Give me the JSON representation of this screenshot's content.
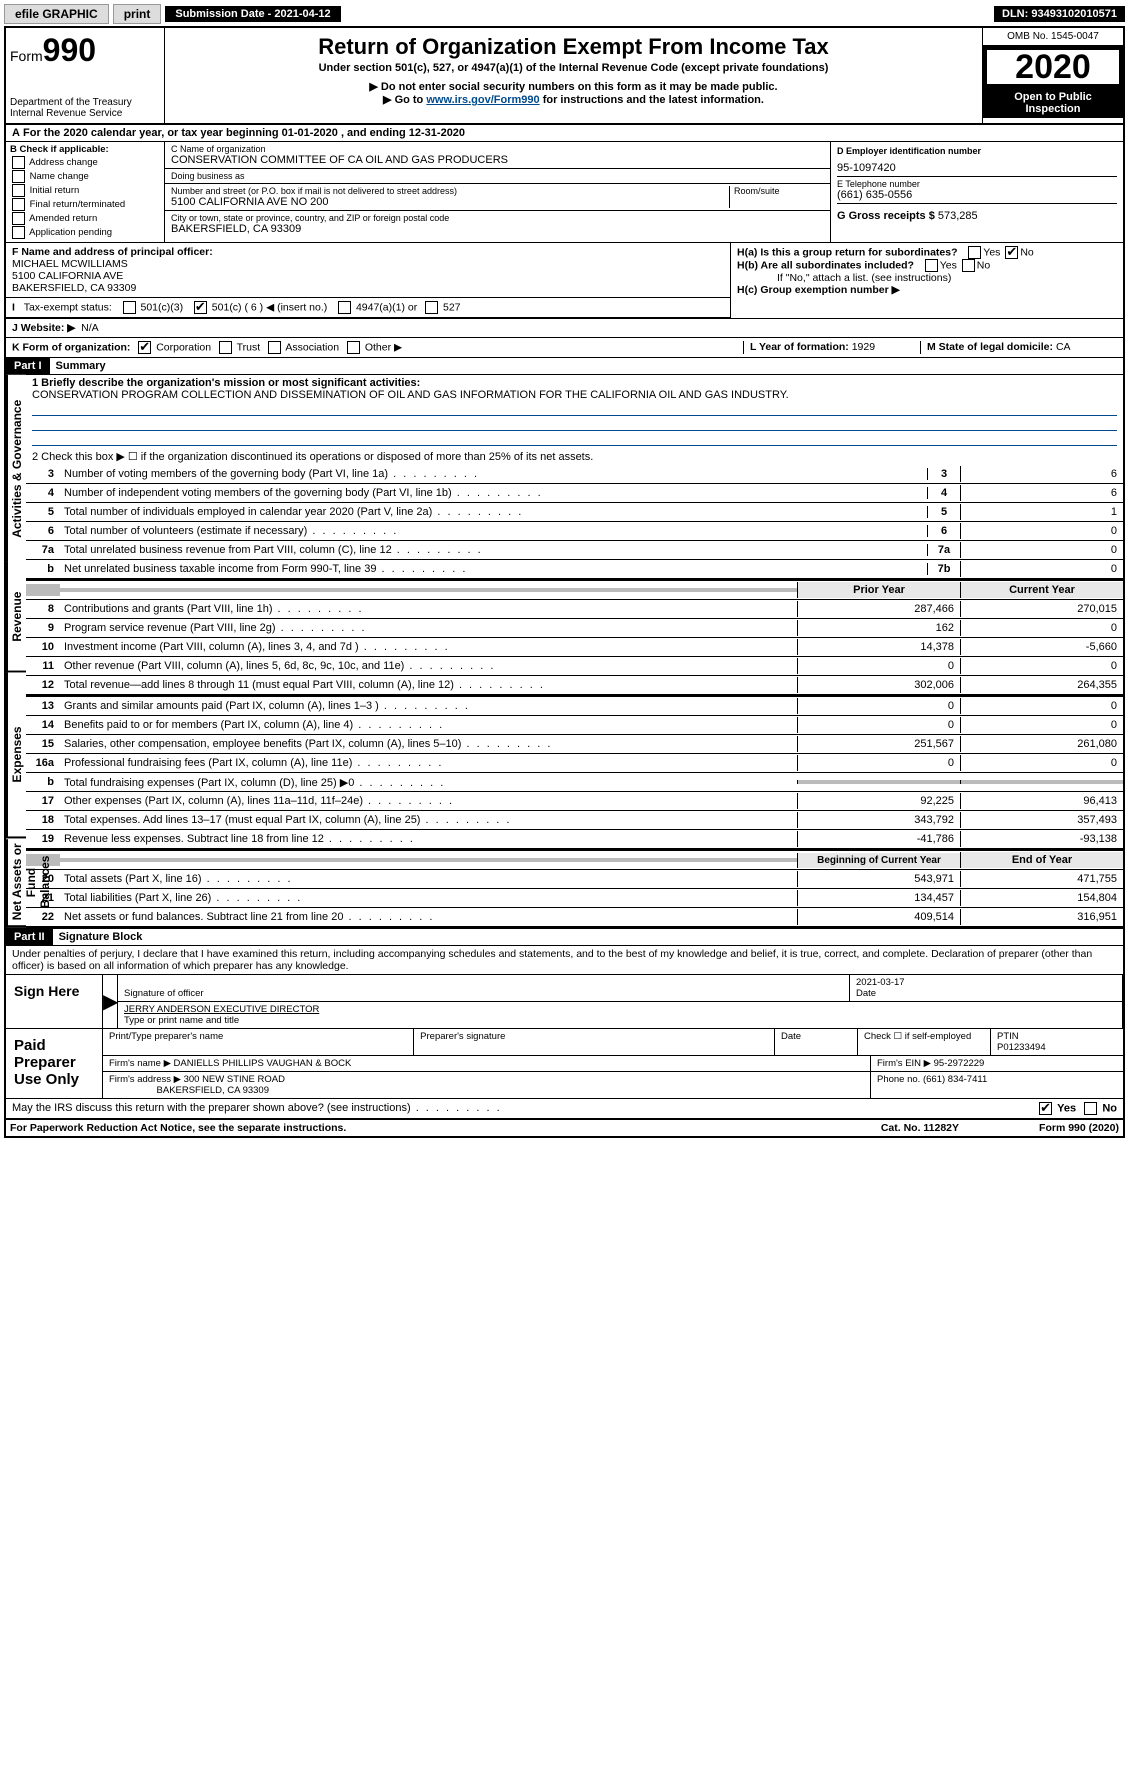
{
  "topbar": {
    "efile": "efile GRAPHIC",
    "print": "print",
    "subdate_label": "Submission Date - 2021-04-12",
    "dln": "DLN: 93493102010571"
  },
  "header": {
    "form_prefix": "Form",
    "form_num": "990",
    "dept": "Department of the Treasury\nInternal Revenue Service",
    "title": "Return of Organization Exempt From Income Tax",
    "subtitle": "Under section 501(c), 527, or 4947(a)(1) of the Internal Revenue Code (except private foundations)",
    "note1": "▶ Do not enter social security numbers on this form as it may be made public.",
    "note2_pre": "▶ Go to ",
    "note2_link": "www.irs.gov/Form990",
    "note2_post": " for instructions and the latest information.",
    "omb": "OMB No. 1545-0047",
    "year": "2020",
    "open": "Open to Public Inspection"
  },
  "periodA": "For the 2020 calendar year, or tax year beginning 01-01-2020     , and ending 12-31-2020",
  "boxB": {
    "label": "B Check if applicable:",
    "opts": [
      "Address change",
      "Name change",
      "Initial return",
      "Final return/terminated",
      "Amended return",
      "Application pending"
    ]
  },
  "boxC": {
    "name_label": "C Name of organization",
    "name": "CONSERVATION COMMITTEE OF CA OIL AND GAS PRODUCERS",
    "dba_label": "Doing business as",
    "dba": "",
    "addr_label": "Number and street (or P.O. box if mail is not delivered to street address)",
    "room_label": "Room/suite",
    "addr": "5100 CALIFORNIA AVE NO 200",
    "city_label": "City or town, state or province, country, and ZIP or foreign postal code",
    "city": "BAKERSFIELD, CA  93309"
  },
  "boxD": {
    "ein_label": "D Employer identification number",
    "ein": "95-1097420",
    "phone_label": "E Telephone number",
    "phone": "(661) 635-0556",
    "gross_label": "G Gross receipts $",
    "gross": "573,285"
  },
  "boxF": {
    "label": "F  Name and address of principal officer:",
    "name": "MICHAEL MCWILLIAMS",
    "addr1": "5100 CALIFORNIA AVE",
    "addr2": "BAKERSFIELD, CA  93309"
  },
  "boxH": {
    "a": "H(a)  Is this a group return for subordinates?",
    "b": "H(b)  Are all subordinates included?",
    "note": "If \"No,\" attach a list. (see instructions)",
    "c": "H(c)  Group exemption number ▶"
  },
  "taxexempt": {
    "label": "Tax-exempt status:",
    "c3": "501(c)(3)",
    "c_blank_pre": "501(c) (",
    "c_blank_val": "6",
    "c_blank_post": ") ◀ (insert no.)",
    "a1": "4947(a)(1) or",
    "527": "527"
  },
  "websiteJ": {
    "label": "J Website: ▶",
    "val": "N/A"
  },
  "rowK": {
    "label": "K Form of organization:",
    "opts": [
      "Corporation",
      "Trust",
      "Association",
      "Other ▶"
    ],
    "L_label": "L Year of formation:",
    "L_val": "1929",
    "M_label": "M State of legal domicile:",
    "M_val": "CA"
  },
  "partI": {
    "hdr": "Part I",
    "title": "Summary",
    "line1": "1  Briefly describe the organization's mission or most significant activities:",
    "mission": "CONSERVATION PROGRAM COLLECTION AND DISSEMINATION OF OIL AND GAS INFORMATION FOR THE CALIFORNIA OIL AND GAS INDUSTRY.",
    "line2": "2    Check this box ▶ ☐  if the organization discontinued its operations or disposed of more than 25% of its net assets.",
    "govlines": [
      {
        "n": "3",
        "d": "Number of voting members of the governing body (Part VI, line 1a)",
        "c": "3",
        "v": "6"
      },
      {
        "n": "4",
        "d": "Number of independent voting members of the governing body (Part VI, line 1b)",
        "c": "4",
        "v": "6"
      },
      {
        "n": "5",
        "d": "Total number of individuals employed in calendar year 2020 (Part V, line 2a)",
        "c": "5",
        "v": "1"
      },
      {
        "n": "6",
        "d": "Total number of volunteers (estimate if necessary)",
        "c": "6",
        "v": "0"
      },
      {
        "n": "7a",
        "d": "Total unrelated business revenue from Part VIII, column (C), line 12",
        "c": "7a",
        "v": "0"
      },
      {
        "n": "b",
        "d": "Net unrelated business taxable income from Form 990-T, line 39",
        "c": "7b",
        "v": "0"
      }
    ],
    "colhdr_prior": "Prior Year",
    "colhdr_curr": "Current Year",
    "revenue": [
      {
        "n": "8",
        "d": "Contributions and grants (Part VIII, line 1h)",
        "p": "287,466",
        "c": "270,015"
      },
      {
        "n": "9",
        "d": "Program service revenue (Part VIII, line 2g)",
        "p": "162",
        "c": "0"
      },
      {
        "n": "10",
        "d": "Investment income (Part VIII, column (A), lines 3, 4, and 7d )",
        "p": "14,378",
        "c": "-5,660"
      },
      {
        "n": "11",
        "d": "Other revenue (Part VIII, column (A), lines 5, 6d, 8c, 9c, 10c, and 11e)",
        "p": "0",
        "c": "0"
      },
      {
        "n": "12",
        "d": "Total revenue—add lines 8 through 11 (must equal Part VIII, column (A), line 12)",
        "p": "302,006",
        "c": "264,355"
      }
    ],
    "expenses": [
      {
        "n": "13",
        "d": "Grants and similar amounts paid (Part IX, column (A), lines 1–3 )",
        "p": "0",
        "c": "0"
      },
      {
        "n": "14",
        "d": "Benefits paid to or for members (Part IX, column (A), line 4)",
        "p": "0",
        "c": "0"
      },
      {
        "n": "15",
        "d": "Salaries, other compensation, employee benefits (Part IX, column (A), lines 5–10)",
        "p": "251,567",
        "c": "261,080"
      },
      {
        "n": "16a",
        "d": "Professional fundraising fees (Part IX, column (A), line 11e)",
        "p": "0",
        "c": "0"
      },
      {
        "n": "b",
        "d": "Total fundraising expenses (Part IX, column (D), line 25) ▶0",
        "p": "",
        "c": "",
        "shade": true
      },
      {
        "n": "17",
        "d": "Other expenses (Part IX, column (A), lines 11a–11d, 11f–24e)",
        "p": "92,225",
        "c": "96,413"
      },
      {
        "n": "18",
        "d": "Total expenses. Add lines 13–17 (must equal Part IX, column (A), line 25)",
        "p": "343,792",
        "c": "357,493"
      },
      {
        "n": "19",
        "d": "Revenue less expenses. Subtract line 18 from line 12",
        "p": "-41,786",
        "c": "-93,138"
      }
    ],
    "colhdr_beg": "Beginning of Current Year",
    "colhdr_end": "End of Year",
    "netassets": [
      {
        "n": "20",
        "d": "Total assets (Part X, line 16)",
        "p": "543,971",
        "c": "471,755"
      },
      {
        "n": "21",
        "d": "Total liabilities (Part X, line 26)",
        "p": "134,457",
        "c": "154,804"
      },
      {
        "n": "22",
        "d": "Net assets or fund balances. Subtract line 21 from line 20",
        "p": "409,514",
        "c": "316,951"
      }
    ]
  },
  "vtabs": {
    "gov": "Activities & Governance",
    "rev": "Revenue",
    "exp": "Expenses",
    "net": "Net Assets or Fund Balances"
  },
  "partII": {
    "hdr": "Part II",
    "title": "Signature Block",
    "decl": "Under penalties of perjury, I declare that I have examined this return, including accompanying schedules and statements, and to the best of my knowledge and belief, it is true, correct, and complete. Declaration of preparer (other than officer) is based on all information of which preparer has any knowledge.",
    "sign_here": "Sign Here",
    "sig_officer": "Signature of officer",
    "sig_date": "2021-03-17",
    "date_label": "Date",
    "officer_name": "JERRY ANDERSON EXECUTIVE DIRECTOR",
    "type_label": "Type or print name and title",
    "paid": "Paid Preparer Use Only",
    "prep_name_label": "Print/Type preparer's name",
    "prep_sig_label": "Preparer's signature",
    "prep_date_label": "Date",
    "check_self": "Check ☐ if self-employed",
    "ptin_label": "PTIN",
    "ptin": "P01233494",
    "firm_name_label": "Firm's name     ▶",
    "firm_name": "DANIELLS PHILLIPS VAUGHAN & BOCK",
    "firm_ein_label": "Firm's EIN ▶",
    "firm_ein": "95-2972229",
    "firm_addr_label": "Firm's address ▶",
    "firm_addr1": "300 NEW STINE ROAD",
    "firm_addr2": "BAKERSFIELD, CA  93309",
    "firm_phone_label": "Phone no.",
    "firm_phone": "(661) 834-7411",
    "discuss": "May the IRS discuss this return with the preparer shown above? (see instructions)"
  },
  "footer": {
    "pra": "For Paperwork Reduction Act Notice, see the separate instructions.",
    "cat": "Cat. No. 11282Y",
    "form": "Form 990 (2020)"
  },
  "yn": {
    "yes": "Yes",
    "no": "No"
  }
}
